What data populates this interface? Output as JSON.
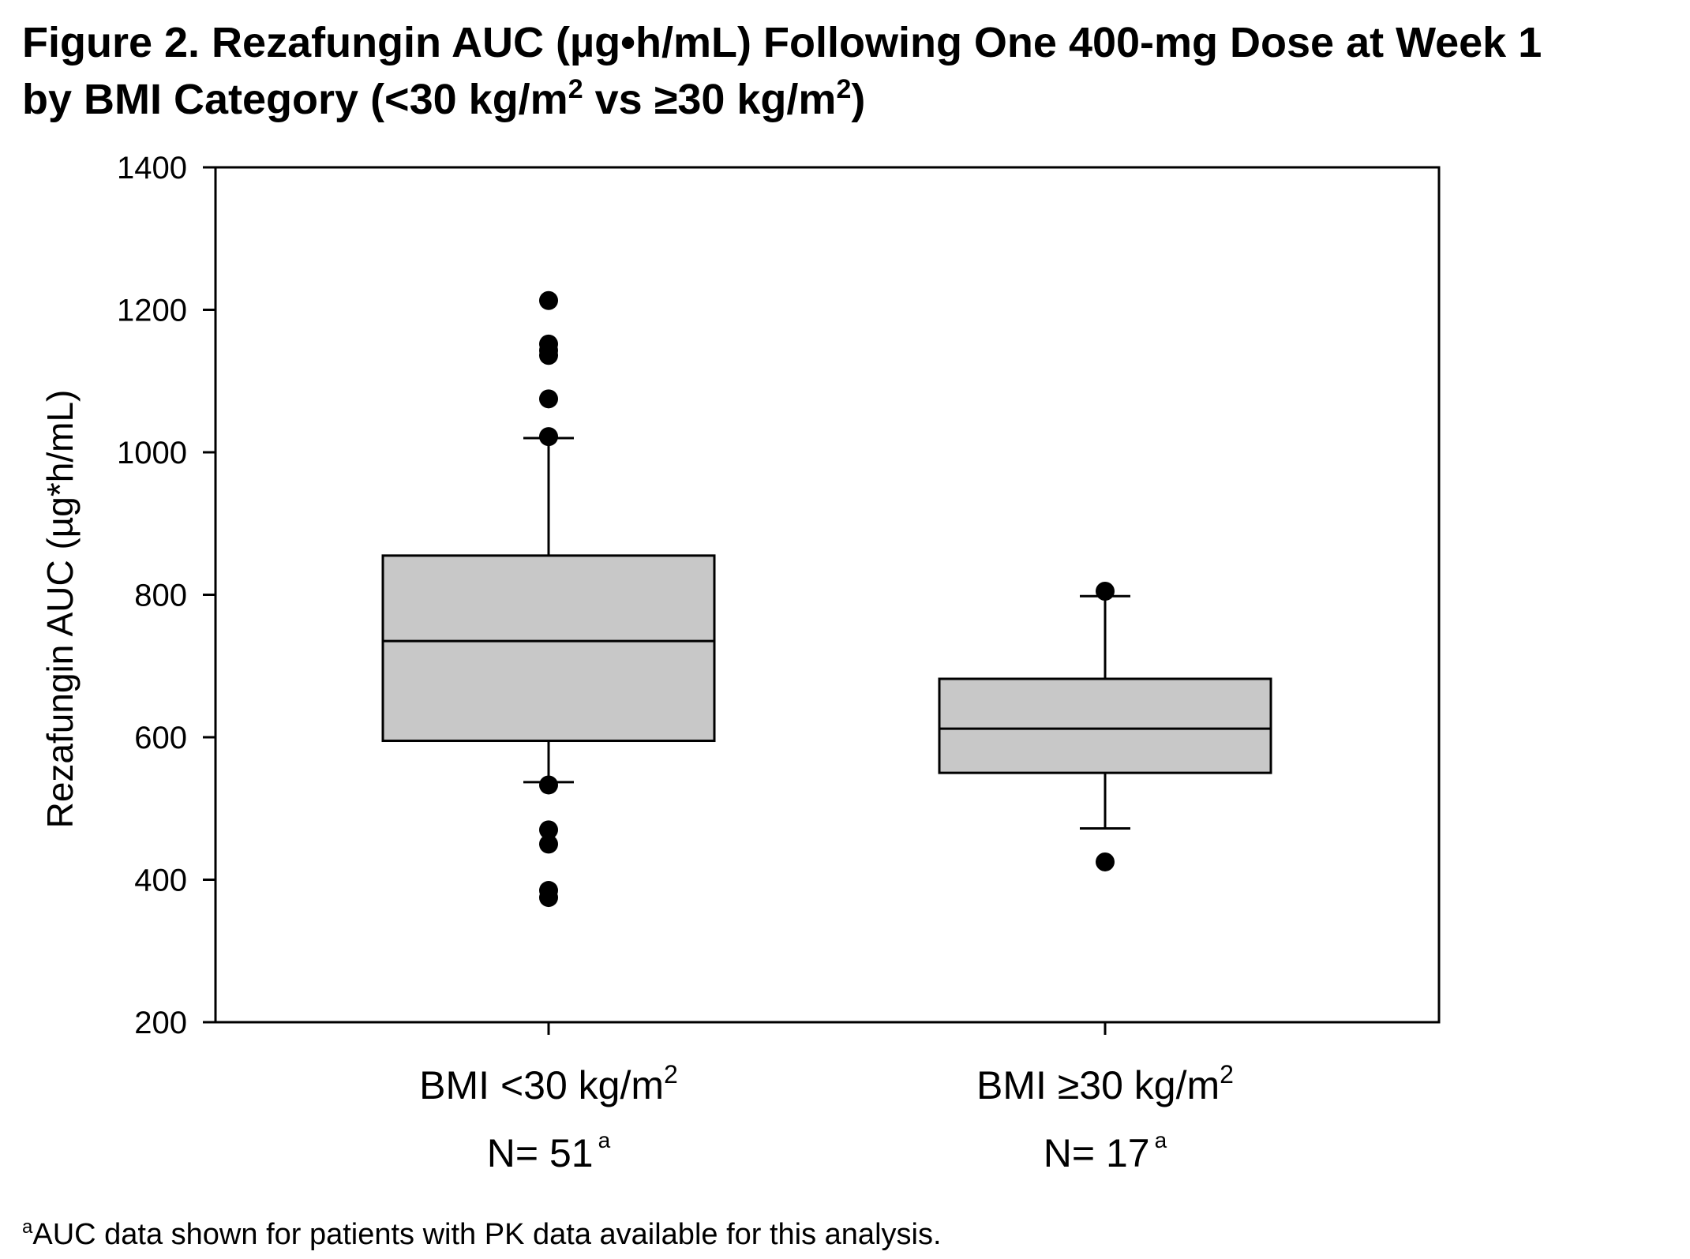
{
  "figure": {
    "title_line1": "Figure 2. Rezafungin AUC (µg•h/mL) Following One 400-mg Dose at Week 1",
    "title_line2_pre": "by BMI Category (<30 kg/m",
    "title_line2_sup1": "2",
    "title_line2_mid": " vs ≥30 kg/m",
    "title_line2_sup2": "2",
    "title_line2_post": ")",
    "footnote_marker": "a",
    "footnote_text": "AUC data shown for patients with PK data available for this analysis."
  },
  "chart_data": {
    "type": "box",
    "ylabel": "Rezafungin AUC (µg*h/mL)",
    "ylim": [
      200,
      1400
    ],
    "yticks": [
      200,
      400,
      600,
      800,
      1000,
      1200,
      1400
    ],
    "grid": false,
    "box_color": "#c8c8c8",
    "categories": [
      {
        "label": "BMI <30 kg/m",
        "label_sup": "2",
        "n_label": "N= 51",
        "n_sup": "a",
        "whisker_low": 537,
        "q1": 595,
        "median": 735,
        "q3": 855,
        "whisker_high": 1020,
        "outliers": [
          1213,
          1152,
          1143,
          1136,
          1075,
          1022,
          533,
          470,
          450,
          385,
          375
        ]
      },
      {
        "label": "BMI ≥30 kg/m",
        "label_sup": "2",
        "n_label": "N= 17",
        "n_sup": "a",
        "whisker_low": 472,
        "q1": 550,
        "median": 612,
        "q3": 682,
        "whisker_high": 798,
        "outliers": [
          805,
          425
        ]
      }
    ]
  }
}
